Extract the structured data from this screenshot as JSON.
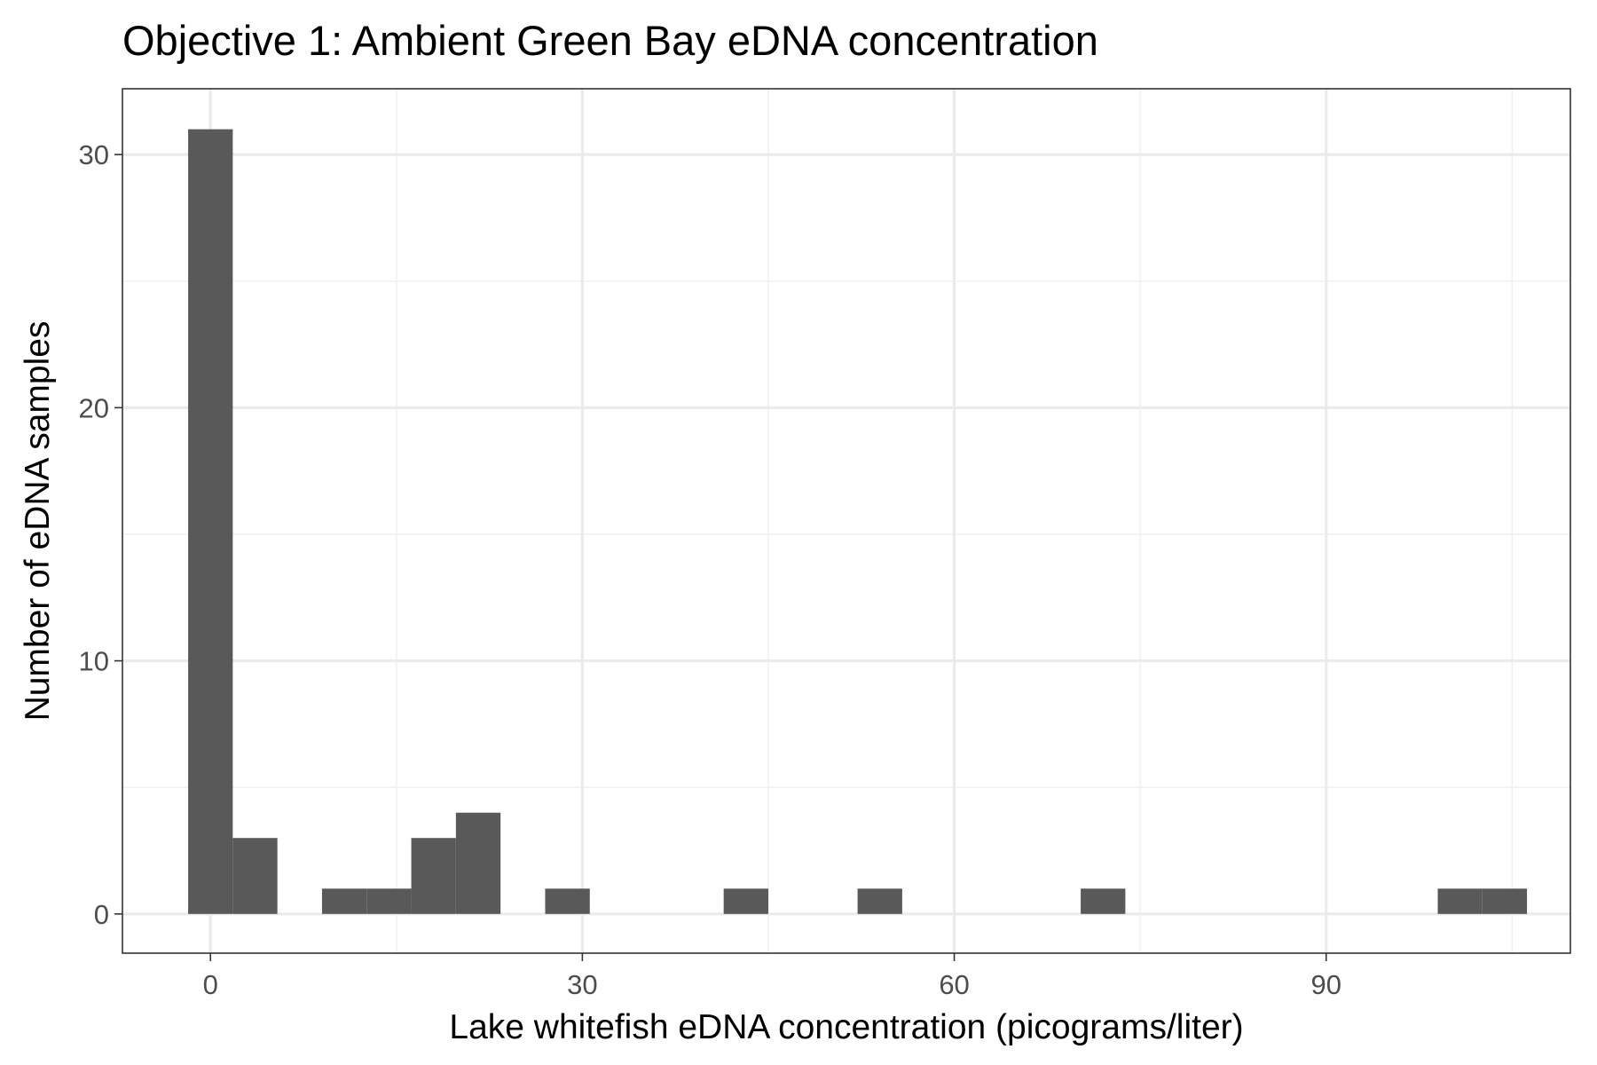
{
  "chart_data": {
    "type": "bar",
    "title": "Objective 1: Ambient Green Bay eDNA concentration",
    "xlabel": "Lake whitefish eDNA concentration (picograms/liter)",
    "ylabel": "Number of eDNA samples",
    "x_ticks": [
      "0",
      "30",
      "60",
      "90"
    ],
    "y_ticks": [
      "0",
      "10",
      "20",
      "30"
    ],
    "xlim": [
      -7.1,
      109.7
    ],
    "ylim": [
      -1.55,
      32.6
    ],
    "grid": true,
    "legend": "none",
    "bar_color": "#595959",
    "bins": [
      {
        "x0": -1.8,
        "x1": 1.8,
        "count": 31
      },
      {
        "x0": 1.8,
        "x1": 5.4,
        "count": 3
      },
      {
        "x0": 9.0,
        "x1": 12.6,
        "count": 1
      },
      {
        "x0": 12.6,
        "x1": 16.2,
        "count": 1
      },
      {
        "x0": 16.2,
        "x1": 19.8,
        "count": 3
      },
      {
        "x0": 19.8,
        "x1": 23.4,
        "count": 4
      },
      {
        "x0": 27.0,
        "x1": 30.6,
        "count": 1
      },
      {
        "x0": 41.4,
        "x1": 45.0,
        "count": 1
      },
      {
        "x0": 52.2,
        "x1": 55.8,
        "count": 1
      },
      {
        "x0": 70.2,
        "x1": 73.8,
        "count": 1
      },
      {
        "x0": 99.0,
        "x1": 102.6,
        "count": 1
      },
      {
        "x0": 102.6,
        "x1": 106.2,
        "count": 1
      }
    ]
  }
}
